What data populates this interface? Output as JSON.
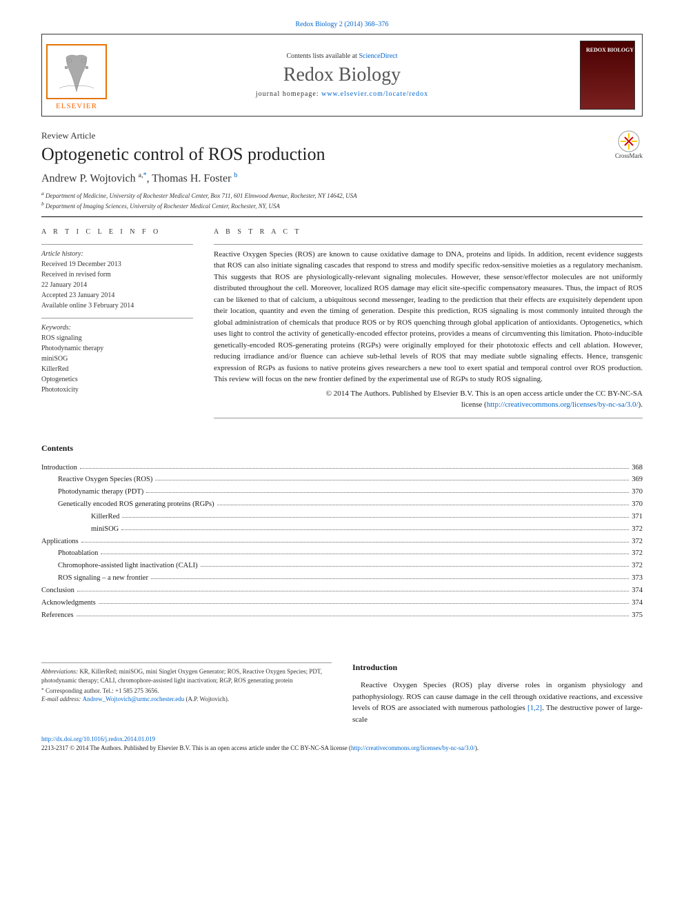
{
  "citation": {
    "prefix": "",
    "link_text": "Redox Biology 2 (2014) 368–376"
  },
  "header": {
    "contents_prefix": "Contents lists available at ",
    "contents_link": "ScienceDirect",
    "journal_name": "Redox Biology",
    "homepage_prefix": "journal homepage: ",
    "homepage_link": "www.elsevier.com/locate/redox",
    "publisher_logo_label": "ELSEVIER",
    "cover_text": "REDOX BIOLOGY"
  },
  "article": {
    "type": "Review Article",
    "title": "Optogenetic control of ROS production",
    "crossmark_label": "CrossMark"
  },
  "authors": {
    "line_html": "Andrew P. Wojtovich",
    "a1_sup": "a,",
    "a1_star": "*",
    "sep": ", Thomas H. Foster",
    "a2_sup": "b"
  },
  "affiliations": [
    {
      "sup": "a",
      "text": " Department of Medicine, University of Rochester Medical Center, Box 711, 601 Elmwood Avenue, Rochester, NY 14642, USA"
    },
    {
      "sup": "b",
      "text": " Department of Imaging Sciences, University of Rochester Medical Center, Rochester, NY, USA"
    }
  ],
  "info": {
    "heading": "A R T I C L E   I N F O",
    "history_label": "Article history:",
    "history": [
      "Received 19 December 2013",
      "Received in revised form",
      "22 January 2014",
      "Accepted 23 January 2014",
      "Available online 3 February 2014"
    ],
    "keywords_label": "Keywords:",
    "keywords": [
      "ROS signaling",
      "Photodynamic therapy",
      "miniSOG",
      "KillerRed",
      "Optogenetics",
      "Phototoxicity"
    ]
  },
  "abstract": {
    "heading": "A B S T R A C T",
    "text": "Reactive Oxygen Species (ROS) are known to cause oxidative damage to DNA, proteins and lipids. In addition, recent evidence suggests that ROS can also initiate signaling cascades that respond to stress and modify specific redox-sensitive moieties as a regulatory mechanism. This suggests that ROS are physiologically-relevant signaling molecules. However, these sensor/effector molecules are not uniformly distributed throughout the cell. Moreover, localized ROS damage may elicit site-specific compensatory measures. Thus, the impact of ROS can be likened to that of calcium, a ubiquitous second messenger, leading to the prediction that their effects are exquisitely dependent upon their location, quantity and even the timing of generation. Despite this prediction, ROS signaling is most commonly intuited through the global administration of chemicals that produce ROS or by ROS quenching through global application of antioxidants. Optogenetics, which uses light to control the activity of genetically-encoded effector proteins, provides a means of circumventing this limitation. Photo-inducible genetically-encoded ROS-generating proteins (RGPs) were originally employed for their phototoxic effects and cell ablation. However, reducing irradiance and/or fluence can achieve sub-lethal levels of ROS that may mediate subtle signaling effects. Hence, transgenic expression of RGPs as fusions to native proteins gives researchers a new tool to exert spatial and temporal control over ROS production. This review will focus on the new frontier defined by the experimental use of RGPs to study ROS signaling.",
    "license_line1": "© 2014 The Authors. Published by Elsevier B.V. This is an open access article under the CC BY-NC-SA",
    "license_prefix": "license (",
    "license_link": "http://creativecommons.org/licenses/by-nc-sa/3.0/",
    "license_suffix": ")."
  },
  "contents": {
    "heading": "Contents",
    "items": [
      {
        "label": "Introduction",
        "page": "368",
        "indent": 0
      },
      {
        "label": "Reactive Oxygen Species (ROS)",
        "page": "369",
        "indent": 1
      },
      {
        "label": "Photodynamic therapy (PDT)",
        "page": "370",
        "indent": 1
      },
      {
        "label": "Genetically encoded ROS generating proteins (RGPs)",
        "page": "370",
        "indent": 1
      },
      {
        "label": "KillerRed",
        "page": "371",
        "indent": 2
      },
      {
        "label": "miniSOG",
        "page": "372",
        "indent": 2
      },
      {
        "label": "Applications",
        "page": "372",
        "indent": 0
      },
      {
        "label": "Photoablation",
        "page": "372",
        "indent": 1
      },
      {
        "label": "Chromophore-assisted light inactivation (CALI)",
        "page": "372",
        "indent": 1
      },
      {
        "label": "ROS signaling – a new frontier",
        "page": "373",
        "indent": 1
      },
      {
        "label": "Conclusion",
        "page": "374",
        "indent": 0
      },
      {
        "label": "Acknowledgments",
        "page": "374",
        "indent": 0
      },
      {
        "label": "References",
        "page": "375",
        "indent": 0
      }
    ]
  },
  "intro": {
    "heading": "Introduction",
    "text": "Reactive Oxygen Species (ROS) play diverse roles in organism physiology and pathophysiology. ROS can cause damage in the cell through oxidative reactions, and excessive levels of ROS are associated with numerous pathologies [1,2]. The destructive power of large-scale",
    "ref_link": "[1,2]"
  },
  "footnotes": {
    "abbrev_label": "Abbreviations:",
    "abbrev_text": " KR, KillerRed; miniSOG, mini Singlet Oxygen Generator; ROS, Reactive Oxygen Species; PDT, photodynamic therapy; CALI, chromophore-assisted light inactivation; RGP, ROS generating protein",
    "corr_marker": "⁎",
    "corr_text": " Corresponding author. Tel.: +1 585 275 3656.",
    "email_label": "E-mail address: ",
    "email_link": "Andrew_Wojtovich@urmc.rochester.edu",
    "email_suffix": " (A.P. Wojtovich)."
  },
  "bottom": {
    "doi": "http://dx.doi.org/10.1016/j.redox.2014.01.019",
    "issn_line_prefix": "2213-2317 © 2014 The Authors. Published by Elsevier B.V. This is an open access article under the CC BY-NC-SA license (",
    "issn_link": "http://creativecommons.org/licenses/by-nc-sa/3.0/",
    "issn_suffix": ")."
  },
  "colors": {
    "link": "#0066cc",
    "text": "#1a1a1a",
    "border": "#333333",
    "elsevier_orange": "#ff6600",
    "elsevier_border": "#e67300"
  }
}
